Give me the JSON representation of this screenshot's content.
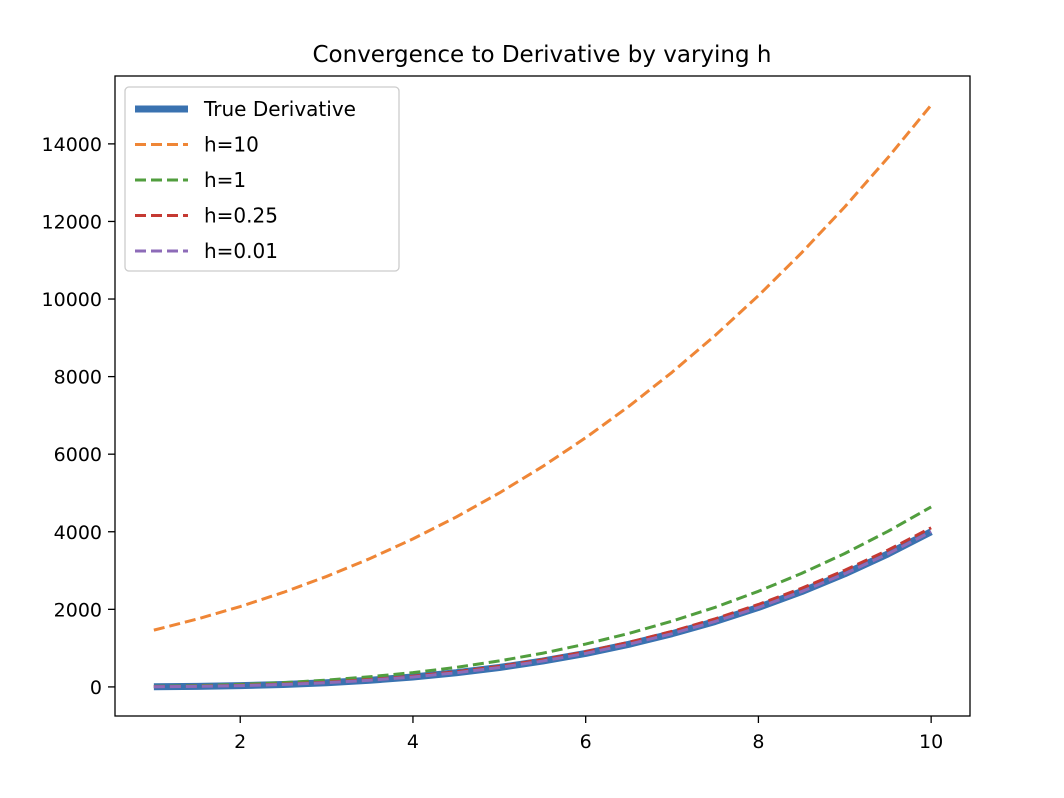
{
  "chart_data": {
    "type": "line",
    "title": "Convergence to Derivative by varying h",
    "xlabel": "",
    "ylabel": "",
    "xlim": [
      0.55,
      10.45
    ],
    "ylim": [
      -750,
      15750
    ],
    "xticks": [
      2,
      4,
      6,
      8,
      10
    ],
    "yticks": [
      0,
      2000,
      4000,
      6000,
      8000,
      10000,
      12000,
      14000
    ],
    "grid": false,
    "legend_position": "top-left",
    "x": [
      1,
      1.5,
      2,
      2.5,
      3,
      3.5,
      4,
      4.5,
      5,
      5.5,
      6,
      6.5,
      7,
      7.5,
      8,
      8.5,
      9,
      9.5,
      10
    ],
    "series": [
      {
        "name": "True Derivative",
        "style": "solid",
        "color": "#3a72b0",
        "values": [
          4,
          13.5,
          32,
          62.5,
          108,
          171.5,
          256,
          364.5,
          500,
          665.5,
          864,
          1098.5,
          1372,
          1687.5,
          2048,
          2456.5,
          2916,
          3429.5,
          4000
        ]
      },
      {
        "name": "h=10",
        "style": "dashed",
        "color": "#ef8636",
        "values": [
          1464,
          1748.5,
          2072,
          2437.5,
          2848,
          3306.5,
          3816,
          4379.5,
          5000,
          5680.5,
          6424,
          7233.5,
          8112,
          9062.5,
          10088,
          11191.5,
          12376,
          13644.5,
          15000
        ]
      },
      {
        "name": "h=1",
        "style": "dashed",
        "color": "#519e3e",
        "values": [
          15,
          31.6,
          65,
          109.6,
          175,
          262.6,
          369,
          502.6,
          671,
          867.6,
          1105,
          1378.6,
          1695,
          2052.6,
          2465,
          2926.6,
          3439,
          4011.6,
          4641
        ]
      },
      {
        "name": "h=0.25",
        "style": "dashed",
        "color": "#c53932",
        "values": [
          6.3,
          17.4,
          38.1,
          72.3,
          120.1,
          187.6,
          276.3,
          390.6,
          531.3,
          702.1,
          906.3,
          1149.6,
          1431.3,
          1755.6,
          2125.1,
          2542.3,
          3007.6,
          3527.1,
          4102.6
        ]
      },
      {
        "name": "h=0.01",
        "style": "dashed",
        "color": "#8d6bb8",
        "values": [
          4.1,
          13.6,
          32.1,
          62.7,
          108.3,
          171.9,
          256.5,
          365.1,
          500.8,
          666.3,
          864.9,
          1099.6,
          1373.1,
          1688.6,
          2049.2,
          2457.8,
          2917.4,
          3431,
          4001.5
        ]
      }
    ]
  }
}
